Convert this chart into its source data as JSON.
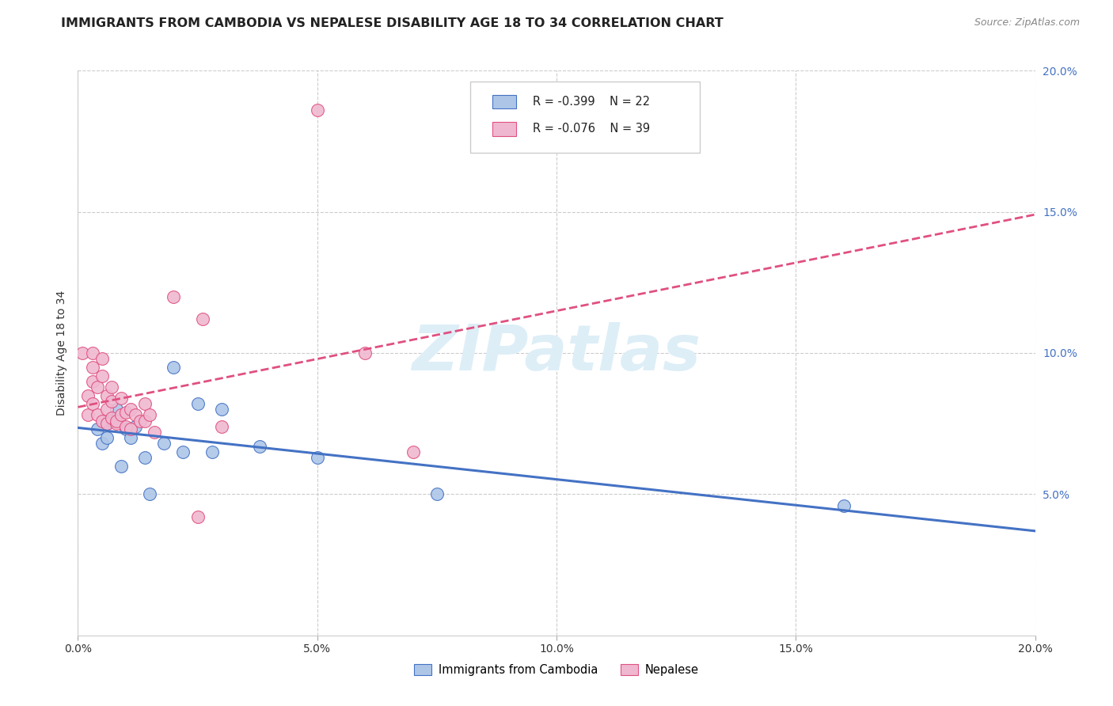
{
  "title": "IMMIGRANTS FROM CAMBODIA VS NEPALESE DISABILITY AGE 18 TO 34 CORRELATION CHART",
  "source": "Source: ZipAtlas.com",
  "ylabel": "Disability Age 18 to 34",
  "legend_r_blue": "R = -0.399",
  "legend_n_blue": "N = 22",
  "legend_r_pink": "R = -0.076",
  "legend_n_pink": "N = 39",
  "legend_label_blue": "Immigrants from Cambodia",
  "legend_label_pink": "Nepalese",
  "xlim": [
    0.0,
    0.2
  ],
  "ylim": [
    0.0,
    0.2
  ],
  "xticks": [
    0.0,
    0.05,
    0.1,
    0.15,
    0.2
  ],
  "yticks": [
    0.05,
    0.1,
    0.15,
    0.2
  ],
  "xticklabels": [
    "0.0%",
    "5.0%",
    "10.0%",
    "15.0%",
    "20.0%"
  ],
  "yticklabels": [
    "5.0%",
    "10.0%",
    "15.0%",
    "20.0%"
  ],
  "blue_scatter_x": [
    0.004,
    0.005,
    0.006,
    0.006,
    0.007,
    0.008,
    0.009,
    0.01,
    0.011,
    0.012,
    0.014,
    0.015,
    0.018,
    0.02,
    0.022,
    0.025,
    0.028,
    0.03,
    0.038,
    0.05,
    0.075,
    0.16
  ],
  "blue_scatter_y": [
    0.073,
    0.068,
    0.075,
    0.07,
    0.076,
    0.08,
    0.06,
    0.073,
    0.07,
    0.074,
    0.063,
    0.05,
    0.068,
    0.095,
    0.065,
    0.082,
    0.065,
    0.08,
    0.067,
    0.063,
    0.05,
    0.046
  ],
  "pink_scatter_x": [
    0.001,
    0.002,
    0.002,
    0.003,
    0.003,
    0.003,
    0.003,
    0.004,
    0.004,
    0.005,
    0.005,
    0.005,
    0.006,
    0.006,
    0.006,
    0.007,
    0.007,
    0.007,
    0.008,
    0.008,
    0.009,
    0.009,
    0.01,
    0.01,
    0.011,
    0.011,
    0.012,
    0.013,
    0.014,
    0.014,
    0.015,
    0.016,
    0.02,
    0.025,
    0.026,
    0.03,
    0.05,
    0.06,
    0.07
  ],
  "pink_scatter_y": [
    0.1,
    0.078,
    0.085,
    0.082,
    0.09,
    0.095,
    0.1,
    0.078,
    0.088,
    0.076,
    0.092,
    0.098,
    0.075,
    0.085,
    0.08,
    0.077,
    0.083,
    0.088,
    0.075,
    0.076,
    0.078,
    0.084,
    0.079,
    0.074,
    0.08,
    0.073,
    0.078,
    0.076,
    0.082,
    0.076,
    0.078,
    0.072,
    0.12,
    0.042,
    0.112,
    0.074,
    0.186,
    0.1,
    0.065
  ],
  "blue_line_color": "#4472c4",
  "pink_line_color": "#e05080",
  "blue_scatter_facecolor": "#adc6e8",
  "pink_scatter_facecolor": "#f0b8d0",
  "bg_color": "#ffffff",
  "grid_color": "#cccccc",
  "watermark_color": "#ddeef7",
  "title_fontsize": 11.5,
  "tick_fontsize": 10,
  "ylabel_fontsize": 10,
  "source_fontsize": 9
}
